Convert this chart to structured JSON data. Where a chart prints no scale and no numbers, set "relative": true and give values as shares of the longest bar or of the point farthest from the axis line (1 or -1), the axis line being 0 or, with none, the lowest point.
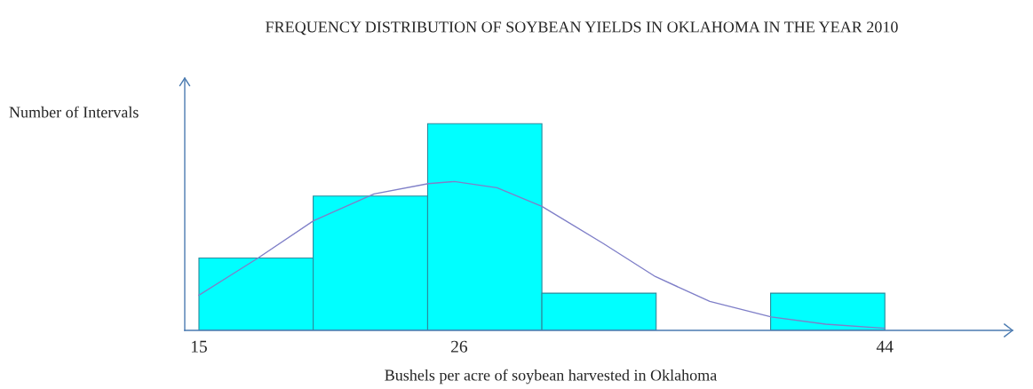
{
  "chart_data": {
    "type": "histogram",
    "title": "FREQUENCY DISTRIBUTION OF SOYBEAN YIELDS IN OKLAHOMA IN THE YEAR 2010",
    "xlabel": "Bushels per acre of soybean harvested in Oklahoma",
    "ylabel": "Number of Intervals",
    "relative": true,
    "bins": [
      15,
      19.83,
      24.67,
      29.5,
      34.33,
      39.17,
      44
    ],
    "values": [
      0.35,
      0.65,
      1,
      0.18,
      0,
      0.18
    ],
    "color": "#00ffff",
    "xlim": [
      14.4,
      49.4
    ],
    "xticks": [
      15,
      26,
      44
    ],
    "grid": false,
    "legend": false,
    "series": [
      {
        "type": "line",
        "color": "#7f7fc8",
        "x": [
          15,
          17.5,
          19.84,
          22.4,
          24.7,
          25.8,
          27.6,
          29.5,
          32.1,
          34.3,
          36.6,
          39.2,
          41.5,
          44
        ],
        "values": [
          0.17,
          0.35,
          0.53,
          0.66,
          0.71,
          0.72,
          0.69,
          0.6,
          0.42,
          0.26,
          0.14,
          0.065,
          0.03,
          0.01
        ]
      }
    ]
  }
}
